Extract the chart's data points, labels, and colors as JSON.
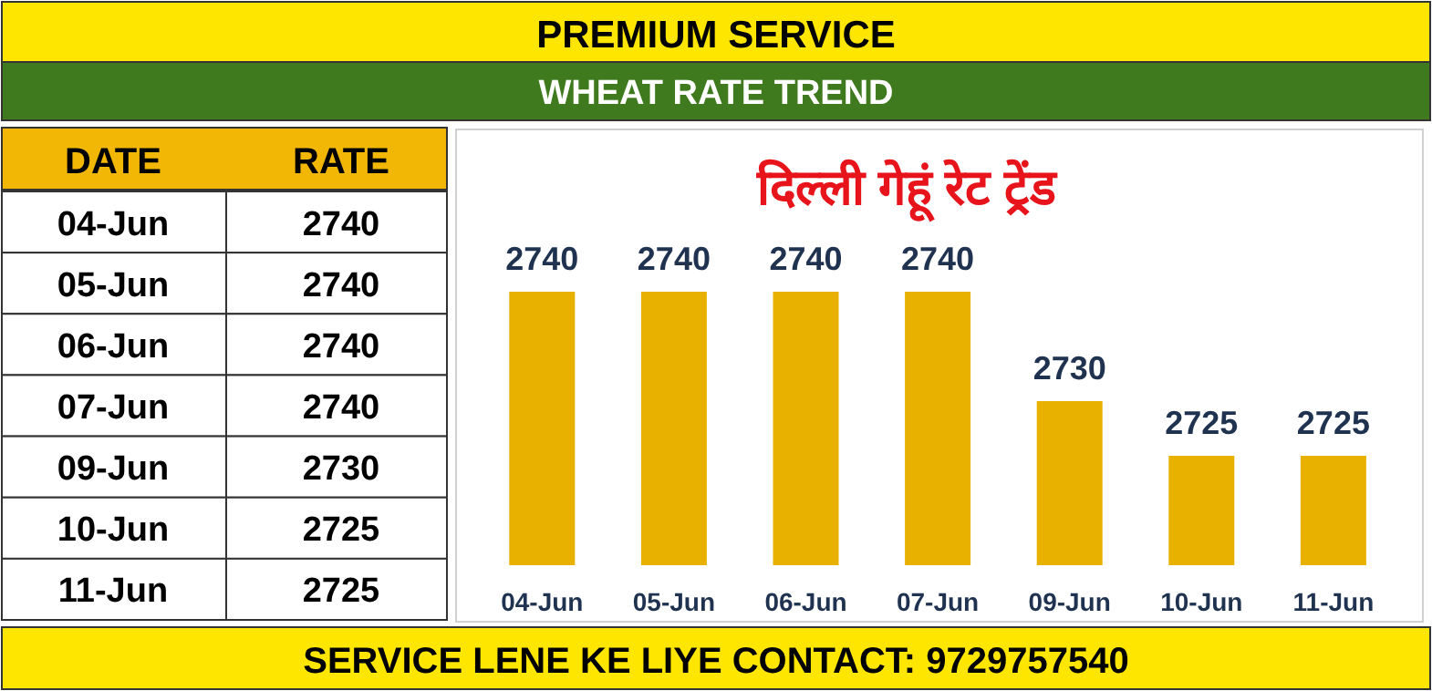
{
  "chart_data": [
    {
      "type": "other",
      "title": "PREMIUM SERVICE",
      "subtitle": "WHEAT RATE TREND",
      "categories": [
        "04-Jun",
        "05-Jun",
        "06-Jun",
        "07-Jun",
        "09-Jun",
        "10-Jun",
        "11-Jun"
      ],
      "values": [
        2740,
        2740,
        2740,
        2740,
        2730,
        2725,
        2725
      ],
      "data_labels": true,
      "annotations": [
        "DATE",
        "RATE",
        "SERVICE LENE KE LIYE CONTACT: 9729757540"
      ]
    },
    {
      "type": "bar",
      "title": "दिल्ली गेहूं रेट ट्रेंड",
      "categories": [
        "04-Jun",
        "05-Jun",
        "06-Jun",
        "07-Jun",
        "09-Jun",
        "10-Jun",
        "11-Jun"
      ],
      "values": [
        2740,
        2740,
        2740,
        2740,
        2730,
        2725,
        2725
      ],
      "ylim": [
        2715,
        2740
      ],
      "color": "#e8b100",
      "data_labels": true
    }
  ]
}
